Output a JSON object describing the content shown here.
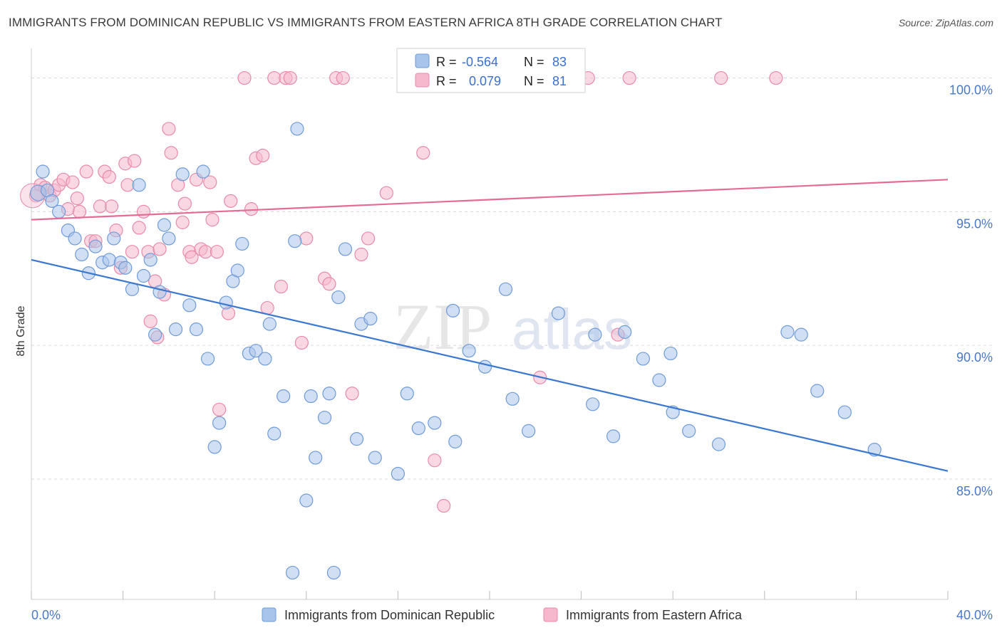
{
  "title": "IMMIGRANTS FROM DOMINICAN REPUBLIC VS IMMIGRANTS FROM EASTERN AFRICA 8TH GRADE CORRELATION CHART",
  "source": "Source: ZipAtlas.com",
  "watermark": {
    "zip": "ZIP",
    "atlas": "atlas"
  },
  "legend": {
    "rows": [
      {
        "r_label": "R =",
        "r_value": "-0.564",
        "n_label": "N =",
        "n_value": "83"
      },
      {
        "r_label": "R =",
        "r_value": "0.079",
        "n_label": "N =",
        "n_value": "81"
      }
    ]
  },
  "bottom_legend": [
    "Immigrants from Dominican Republic",
    "Immigrants from Eastern Africa"
  ],
  "colors": {
    "blue_fill": "#a9c4ea",
    "blue_stroke": "#6f9bd9",
    "blue_line": "#3a78d0",
    "pink_fill": "#f5b8cc",
    "pink_stroke": "#e98aa9",
    "pink_line": "#e56b96",
    "grid": "#d8d8d8",
    "axis_label": "#4a78c8"
  },
  "chart_data": {
    "type": "scatter",
    "title": "IMMIGRANTS FROM DOMINICAN REPUBLIC VS IMMIGRANTS FROM EASTERN AFRICA 8TH GRADE CORRELATION CHART",
    "xlabel": "",
    "ylabel": "8th Grade",
    "xlim": [
      0,
      40
    ],
    "ylim": [
      80.5,
      101.0
    ],
    "x_tick_labels": [
      "0.0%",
      "40.0%"
    ],
    "y_ticks": [
      85,
      90,
      95,
      100
    ],
    "y_tick_labels": [
      "85.0%",
      "90.0%",
      "95.0%",
      "100.0%"
    ],
    "grid": true,
    "series": [
      {
        "name": "Immigrants from Dominican Republic",
        "R": -0.564,
        "N": 83,
        "trend": {
          "x": [
            0,
            40
          ],
          "y": [
            93.2,
            85.3
          ]
        },
        "points": [
          [
            0.3,
            95.7
          ],
          [
            0.5,
            96.5
          ],
          [
            0.7,
            95.8
          ],
          [
            0.9,
            95.4
          ],
          [
            1.2,
            95.0
          ],
          [
            1.6,
            94.3
          ],
          [
            1.9,
            94.0
          ],
          [
            2.2,
            93.4
          ],
          [
            2.5,
            92.7
          ],
          [
            2.8,
            93.7
          ],
          [
            3.1,
            93.1
          ],
          [
            3.4,
            93.2
          ],
          [
            3.6,
            94.0
          ],
          [
            3.9,
            93.1
          ],
          [
            4.1,
            92.9
          ],
          [
            4.4,
            92.1
          ],
          [
            4.7,
            96.0
          ],
          [
            4.9,
            92.6
          ],
          [
            5.2,
            93.2
          ],
          [
            5.4,
            90.4
          ],
          [
            5.6,
            92.0
          ],
          [
            5.8,
            94.5
          ],
          [
            6.0,
            94.0
          ],
          [
            6.3,
            90.6
          ],
          [
            6.6,
            96.4
          ],
          [
            6.9,
            91.5
          ],
          [
            7.2,
            90.6
          ],
          [
            7.5,
            96.5
          ],
          [
            7.7,
            89.5
          ],
          [
            8.0,
            86.2
          ],
          [
            8.2,
            87.1
          ],
          [
            8.5,
            91.6
          ],
          [
            8.8,
            92.4
          ],
          [
            9.0,
            92.8
          ],
          [
            9.2,
            93.8
          ],
          [
            9.5,
            89.7
          ],
          [
            9.8,
            89.8
          ],
          [
            10.2,
            89.5
          ],
          [
            10.4,
            90.8
          ],
          [
            10.6,
            86.7
          ],
          [
            11.0,
            88.1
          ],
          [
            11.5,
            93.9
          ],
          [
            11.6,
            98.1
          ],
          [
            12.0,
            84.2
          ],
          [
            12.2,
            88.1
          ],
          [
            12.4,
            85.8
          ],
          [
            12.8,
            87.3
          ],
          [
            13.0,
            88.2
          ],
          [
            13.4,
            91.8
          ],
          [
            13.7,
            93.6
          ],
          [
            14.2,
            86.5
          ],
          [
            14.4,
            90.8
          ],
          [
            14.8,
            91.0
          ],
          [
            15.0,
            85.8
          ],
          [
            16.0,
            85.2
          ],
          [
            16.4,
            88.2
          ],
          [
            16.9,
            86.9
          ],
          [
            17.6,
            87.1
          ],
          [
            18.4,
            91.3
          ],
          [
            18.5,
            86.4
          ],
          [
            19.1,
            89.8
          ],
          [
            19.8,
            89.2
          ],
          [
            20.7,
            92.1
          ],
          [
            21.0,
            88.0
          ],
          [
            21.7,
            86.8
          ],
          [
            23.0,
            91.2
          ],
          [
            24.5,
            87.8
          ],
          [
            24.6,
            90.4
          ],
          [
            25.4,
            86.6
          ],
          [
            25.9,
            90.5
          ],
          [
            26.7,
            89.5
          ],
          [
            27.4,
            88.7
          ],
          [
            27.9,
            89.7
          ],
          [
            28.0,
            87.5
          ],
          [
            28.7,
            86.8
          ],
          [
            30.0,
            86.3
          ],
          [
            33.0,
            90.5
          ],
          [
            33.6,
            90.4
          ],
          [
            34.3,
            88.3
          ],
          [
            35.5,
            87.5
          ],
          [
            36.8,
            86.1
          ],
          [
            13.2,
            81.5
          ],
          [
            11.4,
            81.5
          ]
        ]
      },
      {
        "name": "Immigrants from Eastern Africa",
        "R": 0.079,
        "N": 81,
        "trend": {
          "x": [
            0,
            40
          ],
          "y": [
            94.7,
            96.2
          ]
        },
        "points": [
          [
            0.2,
            95.6
          ],
          [
            0.4,
            96.0
          ],
          [
            0.6,
            95.9
          ],
          [
            0.8,
            95.6
          ],
          [
            1.0,
            95.8
          ],
          [
            1.2,
            96.0
          ],
          [
            1.4,
            96.2
          ],
          [
            1.6,
            95.1
          ],
          [
            1.8,
            96.1
          ],
          [
            2.0,
            95.5
          ],
          [
            2.1,
            95.0
          ],
          [
            2.4,
            96.5
          ],
          [
            2.6,
            93.9
          ],
          [
            2.8,
            93.9
          ],
          [
            3.0,
            95.2
          ],
          [
            3.2,
            96.5
          ],
          [
            3.4,
            96.3
          ],
          [
            3.5,
            95.2
          ],
          [
            3.7,
            94.3
          ],
          [
            3.9,
            92.9
          ],
          [
            4.1,
            96.8
          ],
          [
            4.2,
            96.0
          ],
          [
            4.4,
            93.5
          ],
          [
            4.5,
            96.9
          ],
          [
            4.7,
            94.4
          ],
          [
            4.9,
            95.0
          ],
          [
            5.1,
            93.5
          ],
          [
            5.2,
            90.9
          ],
          [
            5.4,
            92.4
          ],
          [
            5.6,
            93.6
          ],
          [
            5.8,
            91.9
          ],
          [
            6.0,
            98.1
          ],
          [
            6.1,
            97.2
          ],
          [
            6.4,
            96.0
          ],
          [
            6.6,
            94.6
          ],
          [
            6.7,
            95.3
          ],
          [
            6.9,
            93.5
          ],
          [
            7.0,
            93.3
          ],
          [
            7.2,
            96.2
          ],
          [
            7.4,
            93.6
          ],
          [
            7.6,
            93.5
          ],
          [
            7.8,
            96.1
          ],
          [
            7.9,
            94.7
          ],
          [
            8.1,
            93.5
          ],
          [
            8.2,
            87.6
          ],
          [
            8.6,
            91.2
          ],
          [
            8.7,
            95.4
          ],
          [
            9.3,
            100.0
          ],
          [
            9.6,
            95.1
          ],
          [
            9.8,
            97.0
          ],
          [
            10.1,
            97.1
          ],
          [
            10.3,
            91.4
          ],
          [
            10.6,
            100.0
          ],
          [
            10.9,
            92.2
          ],
          [
            11.1,
            100.0
          ],
          [
            11.3,
            100.0
          ],
          [
            11.8,
            90.1
          ],
          [
            12.8,
            92.5
          ],
          [
            13.0,
            92.3
          ],
          [
            13.3,
            100.0
          ],
          [
            13.6,
            100.0
          ],
          [
            14.0,
            88.2
          ],
          [
            14.4,
            93.4
          ],
          [
            14.7,
            94.0
          ],
          [
            15.5,
            95.7
          ],
          [
            17.1,
            97.2
          ],
          [
            17.6,
            85.7
          ],
          [
            17.9,
            100.0
          ],
          [
            18.0,
            84.0
          ],
          [
            18.4,
            100.0
          ],
          [
            19.3,
            100.0
          ],
          [
            20.2,
            100.0
          ],
          [
            22.2,
            88.8
          ],
          [
            23.4,
            100.0
          ],
          [
            24.3,
            100.0
          ],
          [
            25.6,
            90.4
          ],
          [
            26.1,
            100.0
          ],
          [
            30.1,
            100.0
          ],
          [
            32.5,
            100.0
          ],
          [
            12.0,
            94.0
          ],
          [
            5.5,
            90.3
          ]
        ]
      }
    ]
  }
}
